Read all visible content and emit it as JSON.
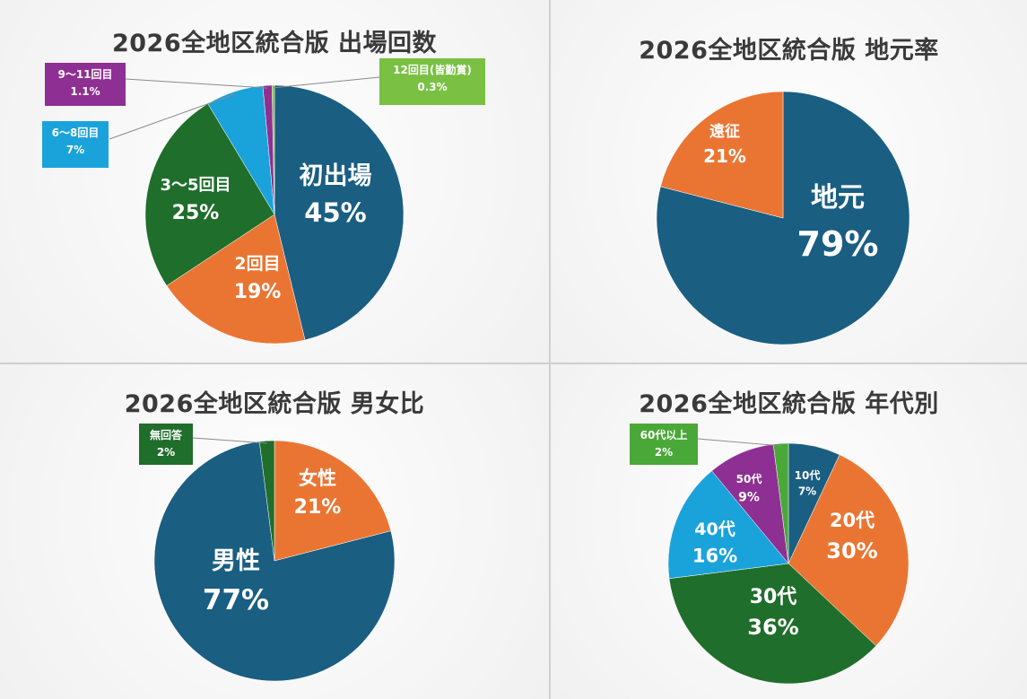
{
  "chart_data": [
    {
      "type": "pie",
      "title": "2026全地区統合版 出場回数",
      "slices": [
        {
          "label": "初出場",
          "value": 45,
          "display": "45%",
          "color": "#1a5e82"
        },
        {
          "label": "2回目",
          "value": 19,
          "display": "19%",
          "color": "#ea7533"
        },
        {
          "label": "3～5回目",
          "value": 25,
          "display": "25%",
          "color": "#1f6e2b"
        },
        {
          "label": "6～8回目",
          "value": 7,
          "display": "7%",
          "color": "#1aa3db"
        },
        {
          "label": "9～11回目",
          "value": 1.1,
          "display": "1.1%",
          "color": "#8e2f93"
        },
        {
          "label": "12回目(皆勤賞)",
          "value": 0.3,
          "display": "0.3%",
          "color": "#79c043"
        }
      ]
    },
    {
      "type": "pie",
      "title": "2026全地区統合版 地元率",
      "slices": [
        {
          "label": "地元",
          "value": 79,
          "display": "79%",
          "color": "#1a5e82"
        },
        {
          "label": "遠征",
          "value": 21,
          "display": "21%",
          "color": "#ea7533"
        }
      ]
    },
    {
      "type": "pie",
      "title": "2026全地区統合版 男女比",
      "slices": [
        {
          "label": "女性",
          "value": 21,
          "display": "21%",
          "color": "#ea7533"
        },
        {
          "label": "男性",
          "value": 77,
          "display": "77%",
          "color": "#1a5e82"
        },
        {
          "label": "無回答",
          "value": 2,
          "display": "2%",
          "color": "#1f6e2b"
        }
      ]
    },
    {
      "type": "pie",
      "title": "2026全地区統合版 年代別",
      "slices": [
        {
          "label": "10代",
          "value": 7,
          "display": "7%",
          "color": "#1a5e82"
        },
        {
          "label": "20代",
          "value": 30,
          "display": "30%",
          "color": "#ea7533"
        },
        {
          "label": "30代",
          "value": 36,
          "display": "36%",
          "color": "#1f6e2b"
        },
        {
          "label": "40代",
          "value": 16,
          "display": "16%",
          "color": "#1aa3db"
        },
        {
          "label": "50代",
          "value": 9,
          "display": "9%",
          "color": "#8e2f93"
        },
        {
          "label": "60代以上",
          "value": 2,
          "display": "2%",
          "color": "#4aa838"
        }
      ]
    }
  ]
}
